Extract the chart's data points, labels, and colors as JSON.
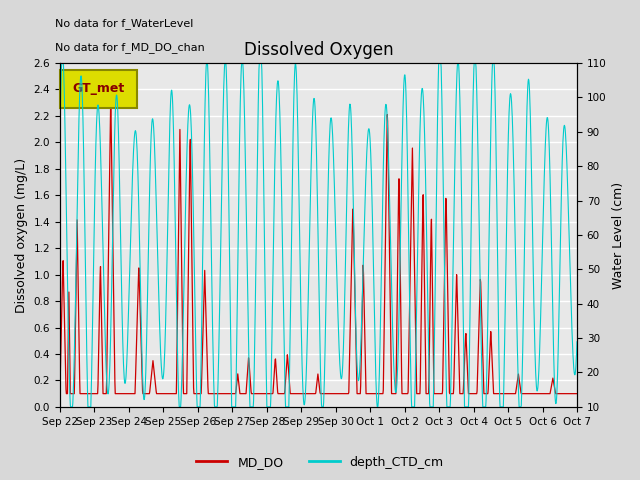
{
  "title": "Dissolved Oxygen",
  "ylabel_left": "Dissolved oxygen (mg/L)",
  "ylabel_right": "Water Level (cm)",
  "ylim_left": [
    0.0,
    2.6
  ],
  "ylim_right": [
    10,
    110
  ],
  "yticks_left": [
    0.0,
    0.2,
    0.4,
    0.6,
    0.8,
    1.0,
    1.2,
    1.4,
    1.6,
    1.8,
    2.0,
    2.2,
    2.4,
    2.6
  ],
  "yticks_right": [
    10,
    20,
    30,
    40,
    50,
    60,
    70,
    80,
    90,
    100,
    110
  ],
  "no_data_text1": "No data for f_WaterLevel",
  "no_data_text2": "No data for f_MD_DO_chan",
  "legend_box_text": "GT_met",
  "legend_line1_label": "MD_DO",
  "legend_line2_label": "depth_CTD_cm",
  "line1_color": "#cc0000",
  "line2_color": "#00cccc",
  "fig_bg_color": "#d8d8d8",
  "plot_bg_color": "#e8e8e8",
  "grid_color": "#ffffff",
  "x_tick_labels": [
    "Sep 22",
    "Sep 23",
    "Sep 24",
    "Sep 25",
    "Sep 26",
    "Sep 27",
    "Sep 28",
    "Sep 29",
    "Sep 30",
    "Oct 1",
    "Oct 2",
    "Oct 3",
    "Oct 4",
    "Oct 5",
    "Oct 6",
    "Oct 7"
  ],
  "x_tick_positions": [
    0,
    1,
    2,
    3,
    4,
    5,
    6,
    7,
    8,
    9,
    10,
    11,
    12,
    13,
    14,
    15
  ],
  "figsize": [
    6.4,
    4.8
  ],
  "dpi": 100
}
